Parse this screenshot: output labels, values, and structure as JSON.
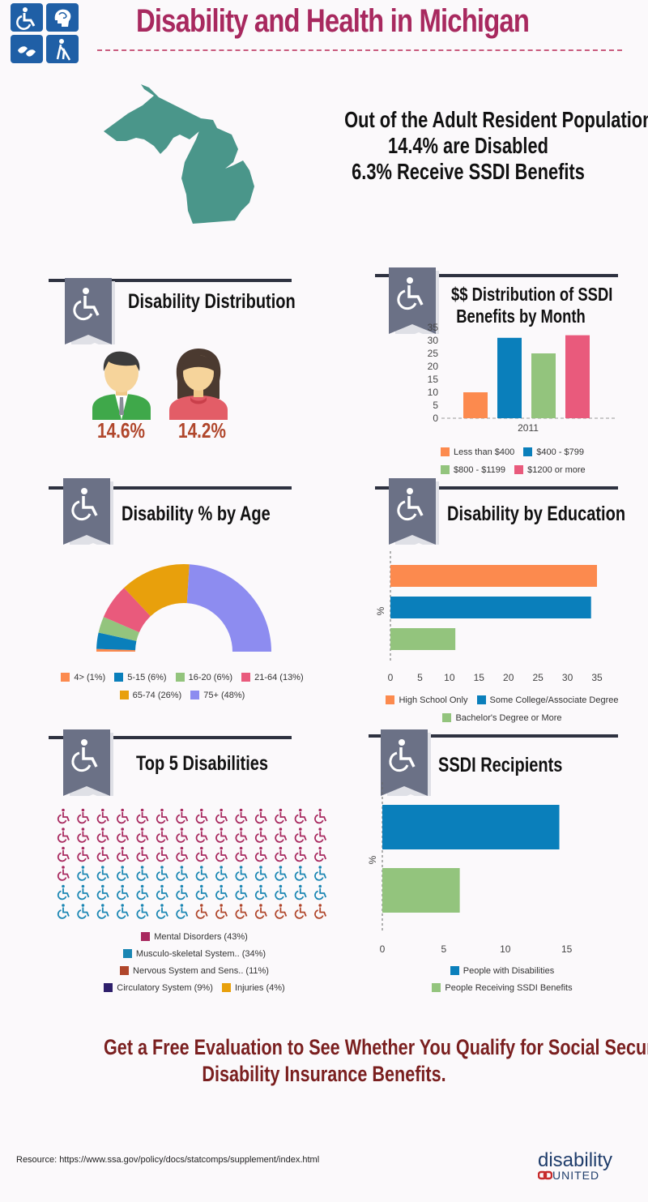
{
  "header": {
    "title": "Disability and Health in Michigan"
  },
  "stats": {
    "line1": "Out of the Adult Resident Population",
    "line2": "14.4% are Disabled",
    "line3": "6.3% Receive SSDI Benefits"
  },
  "sections": {
    "distribution": {
      "title": "Disability Distribution",
      "male_pct": "14.6%",
      "female_pct": "14.2%"
    },
    "ssdi_month": {
      "title1": "$$ Distribution of SSDI",
      "title2": "Benefits by Month"
    },
    "age": {
      "title": "Disability % by Age"
    },
    "education": {
      "title": "Disability by Education"
    },
    "top5": {
      "title": "Top 5 Disabilities"
    },
    "recipients": {
      "title": "SSDI Recipients"
    }
  },
  "chart_data": [
    {
      "type": "bar",
      "categories": [
        "2011"
      ],
      "ylim": [
        0,
        35
      ],
      "yticks": [
        "0",
        "5",
        "10",
        "15",
        "20",
        "25",
        "30",
        "35"
      ],
      "series": [
        {
          "name": "Less than $400",
          "values": [
            10
          ],
          "color": "#fc8a4e"
        },
        {
          "name": "$400 - $799",
          "values": [
            31
          ],
          "color": "#0a7fbb"
        },
        {
          "name": "$800 - $1199",
          "values": [
            25
          ],
          "color": "#93c47d"
        },
        {
          "name": "$1200 or more",
          "values": [
            32
          ],
          "color": "#e95a7c"
        }
      ]
    },
    {
      "type": "pie",
      "semi": true,
      "slices": [
        {
          "label": "4> (1%)",
          "value": 1,
          "color": "#fc8a4e"
        },
        {
          "label": "5-15 (6%)",
          "value": 6,
          "color": "#0a7fbb"
        },
        {
          "label": "16-20 (6%)",
          "value": 6,
          "color": "#93c47d"
        },
        {
          "label": "21-64 (13%)",
          "value": 13,
          "color": "#e95a7c"
        },
        {
          "label": "65-74 (26%)",
          "value": 26,
          "color": "#e8a00c"
        },
        {
          "label": "75+ (48%)",
          "value": 48,
          "color": "#8d8cf0"
        }
      ]
    },
    {
      "type": "bar",
      "orientation": "horizontal",
      "ylabel": "%",
      "xlim": [
        0,
        35
      ],
      "xticks": [
        "0",
        "5",
        "10",
        "15",
        "20",
        "25",
        "30",
        "35"
      ],
      "series": [
        {
          "name": "High School Only",
          "values": [
            35
          ],
          "color": "#fc8a4e"
        },
        {
          "name": "Some College/Associate Degree",
          "values": [
            34
          ],
          "color": "#0a7fbb"
        },
        {
          "name": "Bachelor's Degree or More",
          "values": [
            11
          ],
          "color": "#93c47d"
        }
      ]
    },
    {
      "type": "bar",
      "orientation": "horizontal",
      "ylabel": "%",
      "xlim": [
        0,
        17
      ],
      "xticks": [
        "0",
        "5",
        "10",
        "15"
      ],
      "series": [
        {
          "name": "People with Disabilities",
          "values": [
            14.4
          ],
          "color": "#0a7fbb"
        },
        {
          "name": "People Receiving SSDI Benefits",
          "values": [
            6.3
          ],
          "color": "#93c47d"
        }
      ]
    },
    {
      "type": "pictograph",
      "categories": [
        {
          "label": "Mental Disorders (43%)",
          "value": 43,
          "color": "#a8295f"
        },
        {
          "label": "Musculo-skeletal System.. (34%)",
          "value": 34,
          "color": "#1a86b3"
        },
        {
          "label": "Nervous System and Sens.. (11%)",
          "value": 11,
          "color": "#b0462b"
        },
        {
          "label": "Circulatory System (9%)",
          "value": 9,
          "color": "#2e1f6b"
        },
        {
          "label": "Injuries (4%)",
          "value": 4,
          "color": "#e8a00c"
        }
      ]
    }
  ],
  "footer": {
    "cta_line1": "Get a Free Evaluation to See Whether You Qualify for Social Security",
    "cta_line2": "Disability Insurance Benefits.",
    "resource": "Resource: https://www.ssa.gov/policy/docs/statcomps/supplement/index.html",
    "brand_top": "disability",
    "brand_bottom": "UNITED"
  }
}
